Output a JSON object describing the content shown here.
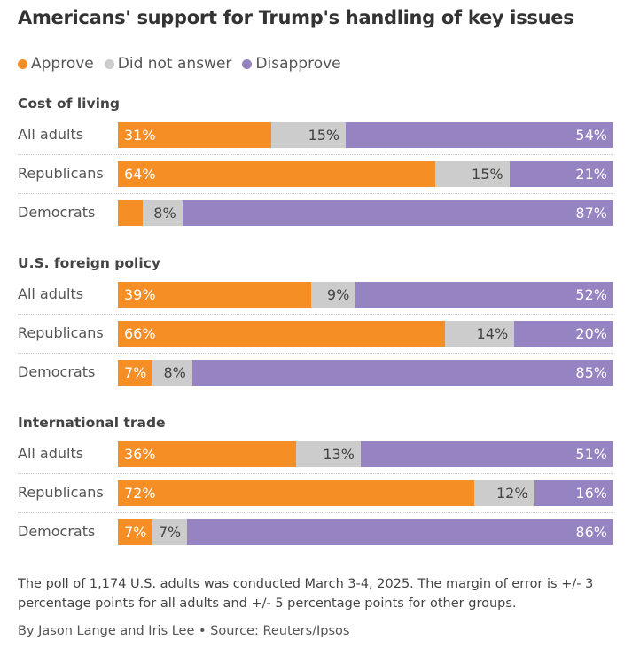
{
  "chart_data": {
    "type": "bar",
    "stacked": true,
    "orientation": "horizontal",
    "title": "Americans' support for Trump's handling of key issues",
    "legend": [
      "Approve",
      "Did not answer",
      "Disapprove"
    ],
    "legend_position": "top-left",
    "colors": {
      "Approve": "#F68E26",
      "Did not answer": "#CCCCCC",
      "Disapprove": "#9683C1"
    },
    "groups": [
      {
        "title": "Cost of living",
        "rows": [
          {
            "label": "All adults",
            "values": [
              31,
              15,
              54
            ],
            "labels": [
              "31%",
              "15%",
              "54%"
            ]
          },
          {
            "label": "Republicans",
            "values": [
              64,
              15,
              21
            ],
            "labels": [
              "64%",
              "15%",
              "21%"
            ]
          },
          {
            "label": "Democrats",
            "values": [
              5,
              8,
              87
            ],
            "labels": [
              "",
              "8%",
              "87%"
            ]
          }
        ]
      },
      {
        "title": "U.S. foreign policy",
        "rows": [
          {
            "label": "All adults",
            "values": [
              39,
              9,
              52
            ],
            "labels": [
              "39%",
              "9%",
              "52%"
            ]
          },
          {
            "label": "Republicans",
            "values": [
              66,
              14,
              20
            ],
            "labels": [
              "66%",
              "14%",
              "20%"
            ]
          },
          {
            "label": "Democrats",
            "values": [
              7,
              8,
              85
            ],
            "labels": [
              "7%",
              "8%",
              "85%"
            ]
          }
        ]
      },
      {
        "title": "International trade",
        "rows": [
          {
            "label": "All adults",
            "values": [
              36,
              13,
              51
            ],
            "labels": [
              "36%",
              "13%",
              "51%"
            ]
          },
          {
            "label": "Republicans",
            "values": [
              72,
              12,
              16
            ],
            "labels": [
              "72%",
              "12%",
              "16%"
            ]
          },
          {
            "label": "Democrats",
            "values": [
              7,
              7,
              86
            ],
            "labels": [
              "7%",
              "7%",
              "86%"
            ]
          }
        ]
      }
    ]
  },
  "footer": {
    "note": "The poll of 1,174 U.S. adults was conducted March 3-4, 2025. The margin of error is +/- 3 percentage points for all adults and +/- 5 percentage points for other groups.",
    "credit": "By Jason Lange and Iris Lee • Source: Reuters/Ipsos"
  }
}
